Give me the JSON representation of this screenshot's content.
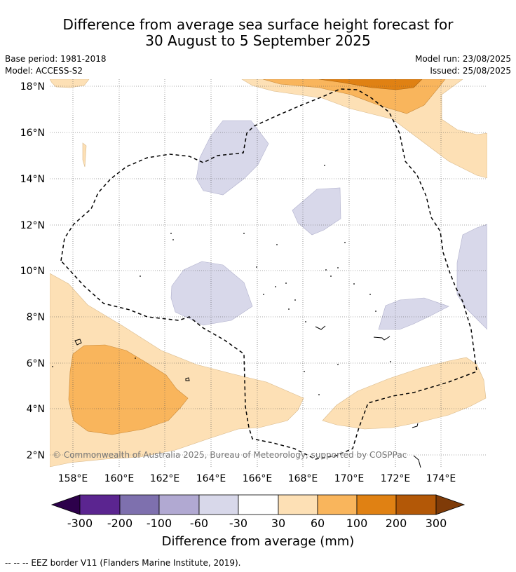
{
  "title": {
    "line1": "Difference from average sea surface height forecast for",
    "line2": "30 August to 5 September 2025"
  },
  "meta": {
    "base_period": "Base period: 1981-2018",
    "model": "Model: ACCESS-S2",
    "model_run": "Model run: 23/08/2025",
    "issued": "Issued: 25/08/2025"
  },
  "map": {
    "lat_labels": [
      "18°N",
      "16°N",
      "14°N",
      "12°N",
      "10°N",
      "8°N",
      "6°N",
      "4°N",
      "2°N"
    ],
    "lon_labels": [
      "158°E",
      "160°E",
      "162°E",
      "164°E",
      "166°E",
      "168°E",
      "170°E",
      "172°E",
      "174°E"
    ],
    "copyright": "© Commonwealth of Australia 2025, Bureau of Meteorology, supported by COSPPac"
  },
  "colorbar": {
    "ticks": [
      "-300",
      "-200",
      "-100",
      "-60",
      "-30",
      "30",
      "60",
      "100",
      "200",
      "300"
    ],
    "colors": [
      "#5b2590",
      "#7e70ae",
      "#b1a9d2",
      "#d8d8ea",
      "#ffffff",
      "#fde0b5",
      "#f9b55c",
      "#e08113",
      "#b35807"
    ],
    "extend_low_color": "#2d004b",
    "extend_high_color": "#7f3b08",
    "label": "Difference from average (mm)"
  },
  "footer": {
    "legend_text": "--  --  -- EEZ border V11 (Flanders Marine Institute, 2019)."
  }
}
